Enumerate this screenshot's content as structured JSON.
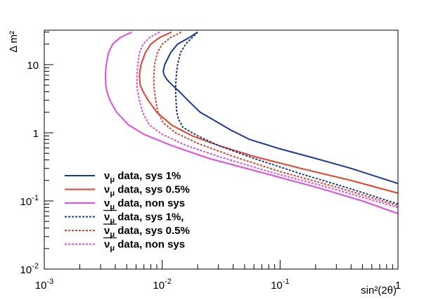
{
  "chart_data": {
    "type": "line",
    "title": "",
    "xlabel": "sin²(2θ)",
    "ylabel": "Δ m²",
    "xscale": "log",
    "yscale": "log",
    "xlim": [
      0.001,
      1
    ],
    "ylim": [
      0.01,
      32
    ],
    "x_ticks": [
      {
        "value": 0.001,
        "base": "10",
        "exp": "-3"
      },
      {
        "value": 0.01,
        "base": "10",
        "exp": "-2"
      },
      {
        "value": 0.1,
        "base": "10",
        "exp": "-1"
      },
      {
        "value": 1,
        "base": "1",
        "exp": ""
      }
    ],
    "y_ticks": [
      {
        "value": 0.01,
        "base": "10",
        "exp": "-2"
      },
      {
        "value": 0.1,
        "base": "10",
        "exp": "-1"
      },
      {
        "value": 1,
        "base": "1",
        "exp": ""
      },
      {
        "value": 10,
        "base": "10",
        "exp": ""
      }
    ],
    "legend_position": "bottom-left",
    "series": [
      {
        "name": "sys1",
        "particle": "ν",
        "subscript": "μ",
        "anti": false,
        "label": " data, sys 1%",
        "color": "#1a3a9a",
        "dash": "solid",
        "points": [
          [
            0.02,
            30
          ],
          [
            0.017,
            25
          ],
          [
            0.0135,
            20
          ],
          [
            0.0118,
            15
          ],
          [
            0.0105,
            10
          ],
          [
            0.0102,
            8
          ],
          [
            0.0104,
            7
          ],
          [
            0.011,
            6
          ],
          [
            0.0122,
            5
          ],
          [
            0.014,
            4
          ],
          [
            0.0165,
            3
          ],
          [
            0.021,
            2
          ],
          [
            0.028,
            1.5
          ],
          [
            0.038,
            1.1
          ],
          [
            0.055,
            0.8
          ],
          [
            0.1,
            0.58
          ],
          [
            0.2,
            0.42
          ],
          [
            0.4,
            0.3
          ],
          [
            1,
            0.18
          ]
        ]
      },
      {
        "name": "sys05",
        "particle": "ν",
        "subscript": "μ",
        "anti": false,
        "label": " data, sys 0.5%",
        "color": "#e8402a",
        "dash": "solid",
        "points": [
          [
            0.012,
            30
          ],
          [
            0.0095,
            25
          ],
          [
            0.008,
            20
          ],
          [
            0.0072,
            15
          ],
          [
            0.0066,
            10
          ],
          [
            0.0064,
            7
          ],
          [
            0.0065,
            5
          ],
          [
            0.0069,
            4
          ],
          [
            0.0076,
            3
          ],
          [
            0.009,
            2
          ],
          [
            0.012,
            1.3
          ],
          [
            0.018,
            0.9
          ],
          [
            0.03,
            0.65
          ],
          [
            0.06,
            0.45
          ],
          [
            0.15,
            0.3
          ],
          [
            0.4,
            0.2
          ],
          [
            1,
            0.13
          ]
        ]
      },
      {
        "name": "nonsys",
        "particle": "ν",
        "subscript": "μ",
        "anti": false,
        "label": " data, non sys",
        "color": "#e64ae6",
        "dash": "solid",
        "points": [
          [
            0.0055,
            30
          ],
          [
            0.0044,
            25
          ],
          [
            0.0038,
            20
          ],
          [
            0.0035,
            15
          ],
          [
            0.00335,
            10
          ],
          [
            0.0033,
            7
          ],
          [
            0.00332,
            5
          ],
          [
            0.0034,
            4
          ],
          [
            0.0036,
            3
          ],
          [
            0.0041,
            2
          ],
          [
            0.0052,
            1.3
          ],
          [
            0.007,
            0.95
          ],
          [
            0.012,
            0.65
          ],
          [
            0.025,
            0.42
          ],
          [
            0.06,
            0.28
          ],
          [
            0.2,
            0.16
          ],
          [
            0.5,
            0.1
          ],
          [
            1,
            0.065
          ]
        ]
      },
      {
        "name": "anti-sys1",
        "particle": "ν",
        "subscript": "μ",
        "anti": true,
        "label": " data, sys 1%,",
        "color": "#1a3a9a",
        "dash": "dotted",
        "points": [
          [
            0.02,
            30
          ],
          [
            0.018,
            25
          ],
          [
            0.0158,
            20
          ],
          [
            0.0143,
            15
          ],
          [
            0.0135,
            10
          ],
          [
            0.0133,
            8
          ],
          [
            0.0131,
            6
          ],
          [
            0.013,
            5
          ],
          [
            0.013,
            4
          ],
          [
            0.0131,
            3
          ],
          [
            0.0133,
            2
          ],
          [
            0.0137,
            1.6
          ],
          [
            0.015,
            1.2
          ],
          [
            0.02,
            0.9
          ],
          [
            0.03,
            0.65
          ],
          [
            0.06,
            0.42
          ],
          [
            0.15,
            0.25
          ],
          [
            0.4,
            0.15
          ],
          [
            1,
            0.09
          ]
        ]
      },
      {
        "name": "anti-sys05",
        "particle": "ν",
        "subscript": "μ",
        "anti": true,
        "label": " data, sys 0.5%",
        "color": "#e8402a",
        "dash": "dotted",
        "points": [
          [
            0.0145,
            30
          ],
          [
            0.0118,
            25
          ],
          [
            0.01,
            20
          ],
          [
            0.0091,
            15
          ],
          [
            0.0086,
            10
          ],
          [
            0.0085,
            7
          ],
          [
            0.0085,
            5
          ],
          [
            0.0086,
            4
          ],
          [
            0.0088,
            3
          ],
          [
            0.0092,
            2
          ],
          [
            0.0102,
            1.4
          ],
          [
            0.013,
            1.0
          ],
          [
            0.02,
            0.7
          ],
          [
            0.04,
            0.45
          ],
          [
            0.1,
            0.27
          ],
          [
            0.3,
            0.16
          ],
          [
            1,
            0.085
          ]
        ]
      },
      {
        "name": "anti-nonsys",
        "particle": "ν",
        "subscript": "μ",
        "anti": true,
        "label": " data, non sys",
        "color": "#e64ae6",
        "dash": "dotted",
        "points": [
          [
            0.0095,
            30
          ],
          [
            0.0078,
            25
          ],
          [
            0.0069,
            20
          ],
          [
            0.0064,
            15
          ],
          [
            0.0062,
            10
          ],
          [
            0.0061,
            7
          ],
          [
            0.0061,
            5
          ],
          [
            0.0062,
            4
          ],
          [
            0.0064,
            3
          ],
          [
            0.0068,
            2
          ],
          [
            0.0078,
            1.3
          ],
          [
            0.01,
            0.95
          ],
          [
            0.016,
            0.65
          ],
          [
            0.03,
            0.45
          ],
          [
            0.08,
            0.27
          ],
          [
            0.25,
            0.16
          ],
          [
            1,
            0.08
          ]
        ]
      }
    ]
  }
}
